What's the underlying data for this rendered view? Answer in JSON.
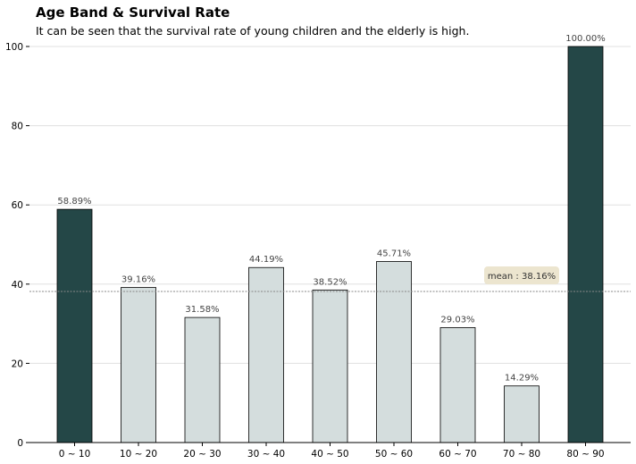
{
  "chart_data": {
    "type": "bar",
    "title": "Age Band & Survival Rate",
    "subtitle": "It can be seen that the survival rate of young children and the elderly is high.",
    "categories": [
      "0 ~ 10",
      "10 ~ 20",
      "20 ~ 30",
      "30 ~ 40",
      "40 ~ 50",
      "50 ~ 60",
      "60 ~ 70",
      "70 ~ 80",
      "80 ~ 90"
    ],
    "values": [
      58.89,
      39.16,
      31.58,
      44.19,
      38.52,
      45.71,
      29.03,
      14.29,
      100.0
    ],
    "data_labels": [
      "58.89%",
      "39.16%",
      "31.58%",
      "44.19%",
      "38.52%",
      "45.71%",
      "29.03%",
      "14.29%",
      "100.00%"
    ],
    "highlighted": [
      true,
      false,
      false,
      false,
      false,
      false,
      false,
      false,
      true
    ],
    "ylim": [
      0,
      100
    ],
    "yticks": [
      0,
      20,
      40,
      60,
      80,
      100
    ],
    "xlabel": "",
    "ylabel": "",
    "grid": "horizontal",
    "mean_line": {
      "value": 38.16,
      "label": "mean : 38.16%"
    },
    "colors": {
      "highlight": "#244747",
      "normal": "#d4dddd",
      "edge": "#000000",
      "grid": "#e0e0e0",
      "mean_line": "#888888",
      "annotation_bg": "#ece5cf",
      "label_text": "#444444"
    }
  }
}
